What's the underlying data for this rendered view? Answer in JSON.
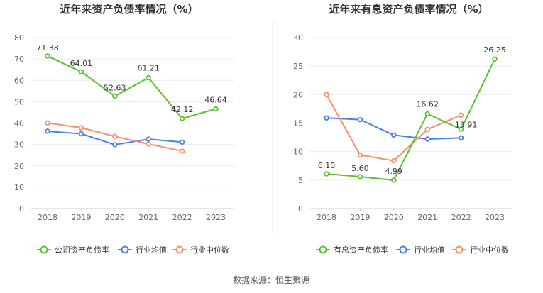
{
  "chart_data": [
    {
      "type": "line",
      "title": "近年来资产负债率情况（%）",
      "categories": [
        "2018",
        "2019",
        "2020",
        "2021",
        "2022",
        "2023"
      ],
      "ylim": [
        0,
        80
      ],
      "yticks": [
        0,
        10,
        20,
        30,
        40,
        50,
        60,
        70,
        80
      ],
      "grid": true,
      "legend": "bottom",
      "series": [
        {
          "name": "公司资产负债率",
          "color": "#5ac230",
          "values": [
            71.38,
            64.01,
            52.63,
            61.21,
            42.12,
            46.64
          ],
          "labels": [
            "71.38",
            "64.01",
            "52.63",
            "61.21",
            "42.12",
            "46.64"
          ]
        },
        {
          "name": "行业均值",
          "color": "#4a7fe6",
          "values": [
            36.2,
            35.0,
            29.9,
            32.5,
            31.1,
            null
          ]
        },
        {
          "name": "行业中位数",
          "color": "#f78f6a",
          "values": [
            40.1,
            37.8,
            33.8,
            30.2,
            26.9,
            null
          ]
        }
      ]
    },
    {
      "type": "line",
      "title": "近年来有息资产负债率情况（%）",
      "categories": [
        "2018",
        "2019",
        "2020",
        "2021",
        "2022",
        "2023"
      ],
      "ylim": [
        0,
        30
      ],
      "yticks": [
        0,
        5,
        10,
        15,
        20,
        25,
        30
      ],
      "grid": true,
      "legend": "bottom",
      "series": [
        {
          "name": "有息资产负债率",
          "color": "#5ac230",
          "values": [
            6.1,
            5.6,
            4.99,
            16.62,
            13.91,
            26.25
          ],
          "labels": [
            "6.10",
            "5.60",
            "4.99",
            "16.62",
            "13.91",
            "26.25"
          ]
        },
        {
          "name": "行业均值",
          "color": "#4a7fe6",
          "values": [
            15.9,
            15.6,
            12.9,
            12.2,
            12.4,
            null
          ]
        },
        {
          "name": "行业中位数",
          "color": "#f78f6a",
          "values": [
            20.0,
            9.4,
            8.4,
            13.9,
            16.4,
            null
          ]
        }
      ]
    }
  ],
  "source": "数据来源：恒生聚源"
}
